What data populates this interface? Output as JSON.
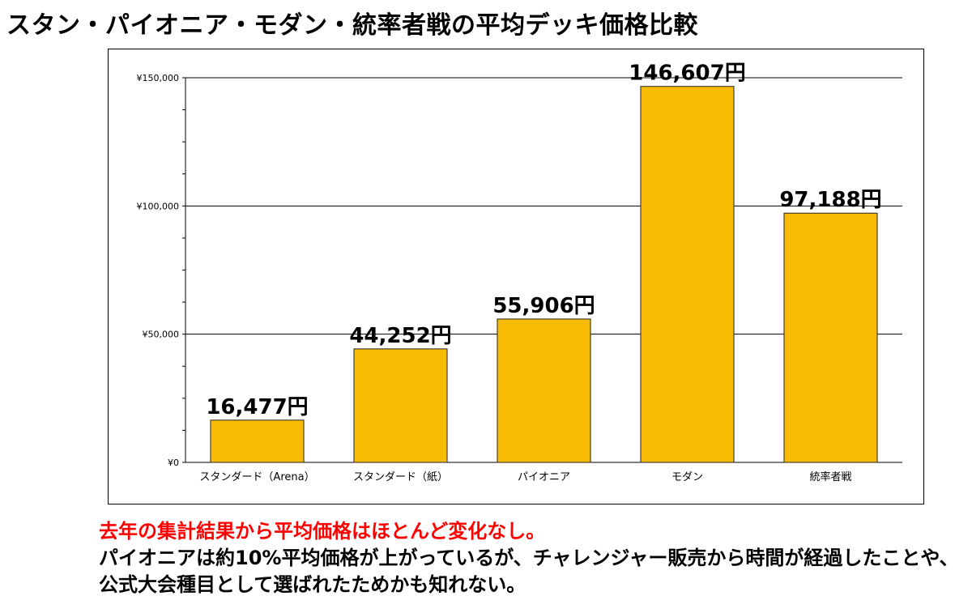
{
  "title": "スタン・パイオニア・モダン・統率者戦の平均デッキ価格比較",
  "colors": {
    "bar": "#F9BC05",
    "bar_stroke": "#222222",
    "note_red": "#FF0000",
    "grid": "#000000"
  },
  "chart_data": {
    "type": "bar",
    "title": "",
    "xlabel": "",
    "ylabel": "",
    "ylim": [
      0,
      150000
    ],
    "yticks": [
      0,
      50000,
      100000,
      150000
    ],
    "ytick_labels": [
      "¥0",
      "¥50,000",
      "¥100,000",
      "¥150,000"
    ],
    "categories": [
      "スタンダード（Arena）",
      "スタンダード（紙）",
      "パイオニア",
      "モダン",
      "統率者戦"
    ],
    "values": [
      16477,
      44252,
      55906,
      146607,
      97188
    ],
    "data_labels": [
      "16,477円",
      "44,252円",
      "55,906円",
      "146,607円",
      "97,188円"
    ],
    "grid": true,
    "legend": "none"
  },
  "notes": {
    "line1": "去年の集計結果から平均価格はほとんど変化なし。",
    "line2": "パイオニアは約10%平均価格が上がっているが、チャレンジャー販売から時間が経過したことや、公式大会種目として選ばれたためかも知れない。"
  }
}
